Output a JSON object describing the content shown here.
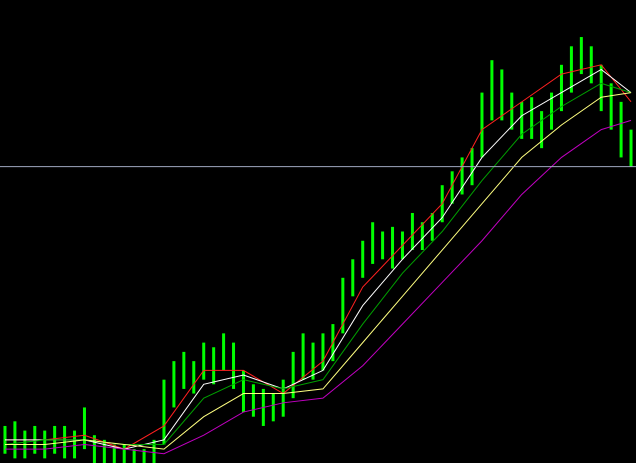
{
  "chart_data": {
    "type": "candlestick",
    "categories": [
      null,
      null,
      null,
      null,
      null,
      null,
      null,
      null,
      null,
      null,
      null,
      null,
      null,
      null,
      null,
      null,
      null,
      null,
      null,
      null,
      null,
      null,
      null,
      null,
      null,
      null,
      null,
      null,
      null,
      null,
      null,
      null,
      null,
      null,
      null,
      null,
      null,
      null,
      null,
      null,
      null,
      null,
      null,
      null,
      null,
      null,
      null,
      null,
      null,
      null,
      null,
      null,
      null,
      null,
      null,
      null,
      null,
      null,
      null,
      null,
      null,
      null,
      null,
      null
    ],
    "high": [
      8,
      9,
      7,
      8,
      7,
      8,
      8,
      7,
      12,
      6,
      5,
      4,
      4,
      3,
      3,
      5,
      18,
      22,
      24,
      22,
      26,
      25,
      28,
      26,
      20,
      17,
      16,
      15,
      18,
      24,
      28,
      26,
      28,
      30,
      40,
      44,
      48,
      52,
      50,
      51,
      50,
      54,
      52,
      54,
      60,
      63,
      66,
      68,
      80,
      87,
      85,
      80,
      78,
      79,
      76,
      80,
      86,
      90,
      92,
      90,
      86,
      82,
      78,
      72
    ],
    "low": [
      2,
      1,
      1,
      2,
      1,
      2,
      1,
      1,
      3,
      0,
      0,
      0,
      0,
      0,
      0,
      0,
      4,
      12,
      16,
      15,
      18,
      17,
      20,
      16,
      11,
      10,
      8,
      9,
      10,
      14,
      18,
      18,
      20,
      22,
      28,
      36,
      40,
      43,
      44,
      42,
      44,
      46,
      46,
      48,
      52,
      56,
      58,
      60,
      66,
      74,
      74,
      72,
      70,
      70,
      68,
      72,
      76,
      80,
      84,
      82,
      76,
      72,
      66,
      64
    ],
    "color": "#00ff00",
    "ylim": [
      0,
      100
    ],
    "background": "#000000",
    "level": 64,
    "level_color": "#a0a8c0",
    "moving_averages": {
      "x": [
        0,
        4,
        8,
        12,
        16,
        20,
        24,
        28,
        32,
        36,
        40,
        44,
        48,
        52,
        56,
        60,
        63
      ],
      "series": [
        {
          "color": "#ff2020",
          "values": [
            5,
            5,
            6,
            3,
            8,
            20,
            20,
            15,
            22,
            38,
            47,
            56,
            72,
            78,
            84,
            86,
            78
          ]
        },
        {
          "color": "#ffffff",
          "values": [
            5,
            5,
            5,
            3,
            5,
            17,
            19,
            16,
            20,
            34,
            44,
            53,
            66,
            75,
            80,
            85,
            80
          ]
        },
        {
          "color": "#00a000",
          "values": [
            4,
            5,
            5,
            4,
            4,
            14,
            18,
            16,
            18,
            30,
            41,
            50,
            61,
            71,
            77,
            82,
            80
          ]
        },
        {
          "color": "#ffff80",
          "values": [
            4,
            4,
            5,
            4,
            3,
            10,
            15,
            15,
            16,
            26,
            36,
            46,
            56,
            66,
            73,
            79,
            80
          ]
        },
        {
          "color": "#c000c0",
          "values": [
            3,
            3,
            4,
            3,
            2,
            6,
            11,
            13,
            14,
            21,
            30,
            39,
            48,
            58,
            66,
            72,
            74
          ]
        }
      ]
    }
  }
}
